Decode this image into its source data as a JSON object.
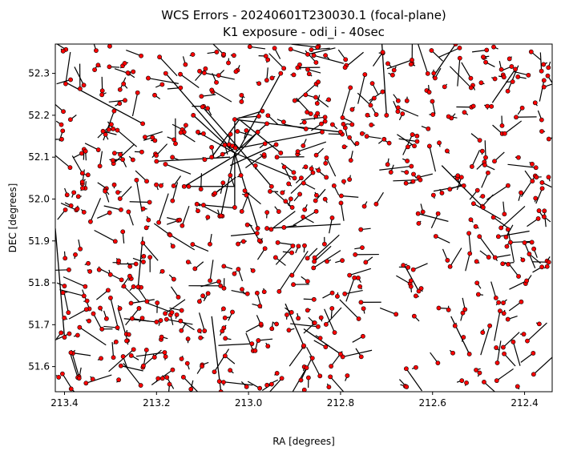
{
  "chart_data": {
    "type": "scatter",
    "title": "WCS Errors - 20240601T230030.1 (focal-plane)",
    "subtitle": "K1 exposure - odi_i - 40sec",
    "xlabel": "RA [degrees]",
    "ylabel": "DEC [degrees]",
    "xlim": [
      213.42,
      212.34
    ],
    "ylim": [
      51.54,
      52.37
    ],
    "x_inverted": true,
    "grid": false,
    "x_ticks": [
      213.4,
      213.2,
      213.0,
      212.8,
      212.6,
      212.4
    ],
    "x_tick_labels": [
      "213.4",
      "213.2",
      "213.0",
      "212.8",
      "212.6",
      "212.4"
    ],
    "y_ticks": [
      51.6,
      51.7,
      51.8,
      51.9,
      52.0,
      52.1,
      52.2,
      52.3
    ],
    "y_tick_labels": [
      "51.6",
      "51.7",
      "51.8",
      "51.9",
      "52.0",
      "52.1",
      "52.2",
      "52.3"
    ],
    "marker_color": "#ff0000",
    "marker_edge_color": "#000000",
    "vector_color": "#000000",
    "long_vectors": [
      [
        213.03,
        52.11,
        213.18,
        52.3
      ],
      [
        213.02,
        52.12,
        212.93,
        52.3
      ],
      [
        213.04,
        52.1,
        213.2,
        52.09
      ],
      [
        213.03,
        52.11,
        212.9,
        52.05
      ],
      [
        213.02,
        52.12,
        213.1,
        52.22
      ],
      [
        213.03,
        52.11,
        212.96,
        52.18
      ],
      [
        213.03,
        52.1,
        213.03,
        51.98
      ],
      [
        213.04,
        52.12,
        213.12,
        52.2
      ],
      [
        213.03,
        52.12,
        212.84,
        52.16
      ],
      [
        213.02,
        52.11,
        213.14,
        52.03
      ],
      [
        213.03,
        52.12,
        213.03,
        52.19
      ],
      [
        213.03,
        52.1,
        212.98,
        52.16
      ],
      [
        213.03,
        52.11,
        213.06,
        51.96
      ],
      [
        213.02,
        52.12,
        212.95,
        52.03
      ],
      [
        213.03,
        52.19,
        212.8,
        52.16
      ],
      [
        213.02,
        52.19,
        212.93,
        52.11
      ],
      [
        213.02,
        52.19,
        213.08,
        52.1
      ],
      [
        213.03,
        52.19,
        212.97,
        52.21
      ],
      [
        213.03,
        52.11,
        213.11,
        52.16
      ],
      [
        213.03,
        52.03,
        213.13,
        52.03
      ],
      [
        213.04,
        52.08,
        212.94,
        52.13
      ],
      [
        213.03,
        52.11,
        212.98,
        51.93
      ],
      [
        213.4,
        52.28,
        213.23,
        52.18
      ],
      [
        212.71,
        52.37,
        212.7,
        52.2
      ],
      [
        212.6,
        52.29,
        212.55,
        52.37
      ],
      [
        212.58,
        52.08,
        212.49,
        51.98
      ],
      [
        212.47,
        52.23,
        212.42,
        52.31
      ],
      [
        213.08,
        51.72,
        213.06,
        51.54
      ],
      [
        213.42,
        51.93,
        213.4,
        51.67
      ],
      [
        212.92,
        51.75,
        212.88,
        51.65
      ],
      [
        212.8,
        51.94,
        212.96,
        51.93
      ],
      [
        212.56,
        51.72,
        212.52,
        51.63
      ],
      [
        212.88,
        51.69,
        212.8,
        51.63
      ],
      [
        213.23,
        51.91,
        213.24,
        51.79
      ],
      [
        212.66,
        51.84,
        212.63,
        51.78
      ]
    ],
    "point_count_approx": 700
  }
}
